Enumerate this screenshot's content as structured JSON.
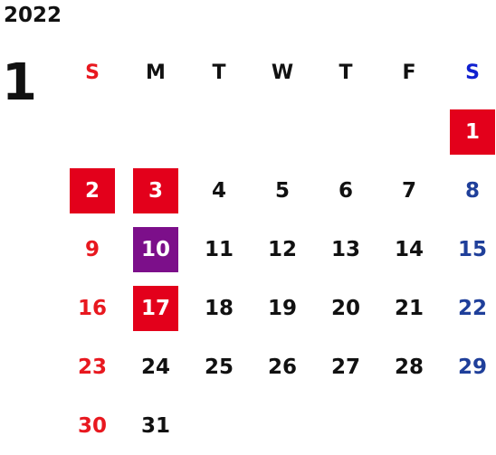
{
  "year": "2022",
  "month": "1",
  "weekdays": [
    "S",
    "M",
    "T",
    "W",
    "T",
    "F",
    "S"
  ],
  "weeks": [
    [
      "",
      "",
      "",
      "",
      "",
      "",
      "1"
    ],
    [
      "2",
      "3",
      "4",
      "5",
      "6",
      "7",
      "8"
    ],
    [
      "9",
      "10",
      "11",
      "12",
      "13",
      "14",
      "15"
    ],
    [
      "16",
      "17",
      "18",
      "19",
      "20",
      "21",
      "22"
    ],
    [
      "23",
      "24",
      "25",
      "26",
      "27",
      "28",
      "29"
    ],
    [
      "30",
      "31",
      "",
      "",
      "",
      "",
      ""
    ]
  ],
  "highlights": {
    "1": "red",
    "2": "red",
    "3": "red",
    "10": "purple",
    "17": "red"
  },
  "colors": {
    "sunday": "#e8181f",
    "saturday": "#1f3f9a",
    "saturday_header": "#1020d0",
    "weekday": "#111111",
    "holiday_bg": "#e3001b",
    "special_bg": "#7c0f8a"
  }
}
